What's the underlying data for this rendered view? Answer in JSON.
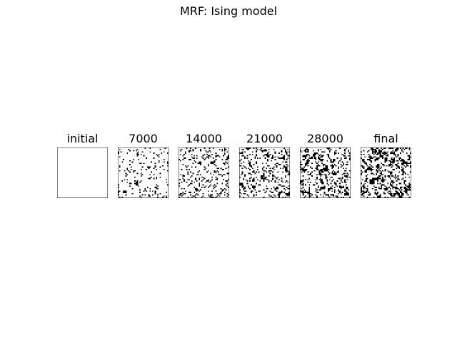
{
  "title": "MRF: Ising model",
  "chart_data": {
    "type": "heatmap",
    "title": "MRF: Ising model",
    "grid_size": [
      40,
      40
    ],
    "colormap": [
      "#ffffff",
      "#000000"
    ],
    "axes_ticks": false,
    "panels": [
      {
        "label": "initial",
        "black_fraction": 0.0,
        "seed": 1
      },
      {
        "label": "7000",
        "black_fraction": 0.13,
        "seed": 7
      },
      {
        "label": "14000",
        "black_fraction": 0.22,
        "seed": 14
      },
      {
        "label": "21000",
        "black_fraction": 0.28,
        "seed": 21
      },
      {
        "label": "28000",
        "black_fraction": 0.33,
        "seed": 28
      },
      {
        "label": "final",
        "black_fraction": 0.36,
        "seed": 35
      }
    ]
  }
}
